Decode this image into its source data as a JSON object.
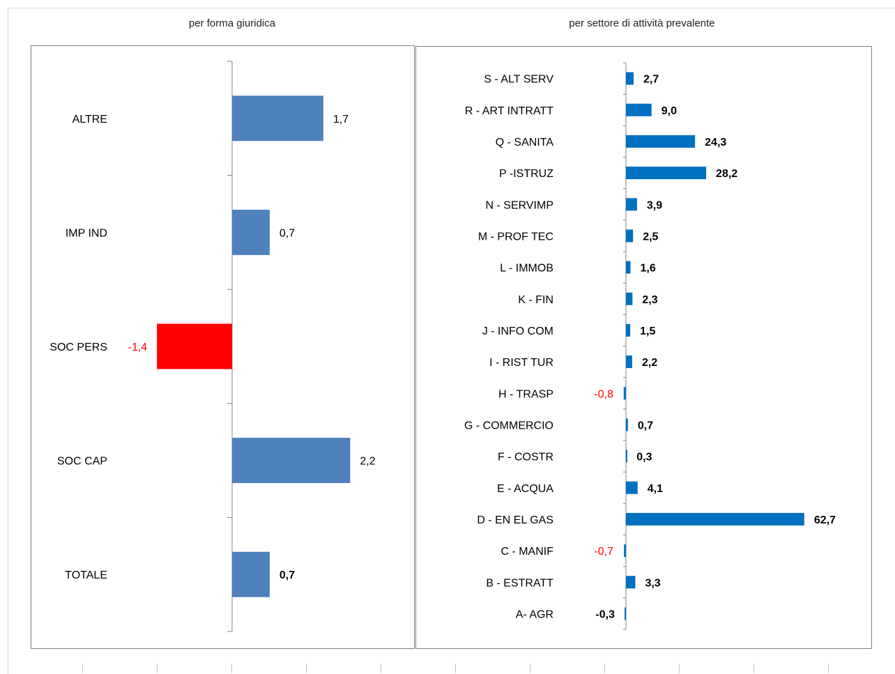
{
  "titles": {
    "left": "per forma giuridica",
    "right": "per settore di attività prevalente"
  },
  "colors": {
    "left_positive": "#4f81bd",
    "left_negative": "#ff0000",
    "right_positive": "#0070c0",
    "negative_label": "#ff0000",
    "axis": "#808080"
  },
  "chart_data": [
    {
      "type": "bar",
      "orientation": "horizontal",
      "title": "per forma giuridica",
      "categories": [
        "ALTRE",
        "IMP IND",
        "SOC PERS",
        "SOC CAP",
        "TOTALE"
      ],
      "values": [
        1.7,
        0.7,
        -1.4,
        2.2,
        0.7
      ],
      "labels": [
        "1,7",
        "0,7",
        "-1,4",
        "2,2",
        "0,7"
      ],
      "bold_labels": [
        "TOTALE"
      ],
      "xlim": [
        -4.0,
        4.0
      ]
    },
    {
      "type": "bar",
      "orientation": "horizontal",
      "title": "per settore di attività prevalente",
      "categories": [
        "S - ALT SERV",
        "R - ART INTRATT",
        "Q - SANITA",
        "P -ISTRUZ",
        "N - SERVIMP",
        "M - PROF TEC",
        "L - IMMOB",
        "K - FIN",
        "J - INFO COM",
        "I - RIST TUR",
        "H - TRASP",
        "G - COMMERCIO",
        "F - COSTR",
        "E - ACQUA",
        "D - EN EL GAS",
        "C - MANIF",
        "B - ESTRATT",
        "A- AGR"
      ],
      "values": [
        2.7,
        9.0,
        24.3,
        28.2,
        3.9,
        2.5,
        1.6,
        2.3,
        1.5,
        2.2,
        -0.8,
        0.7,
        0.3,
        4.1,
        62.7,
        -0.7,
        3.3,
        -0.3
      ],
      "labels": [
        "2,7",
        "9,0",
        "24,3",
        "28,2",
        "3,9",
        "2,5",
        "1,6",
        "2,3",
        "1,5",
        "2,2",
        "-0,8",
        "0,7",
        "0,3",
        "4,1",
        "62,7",
        "-0,7",
        "3,3",
        "-0,3"
      ],
      "red_labels": [
        "H - TRASP",
        "C - MANIF"
      ]
    }
  ]
}
